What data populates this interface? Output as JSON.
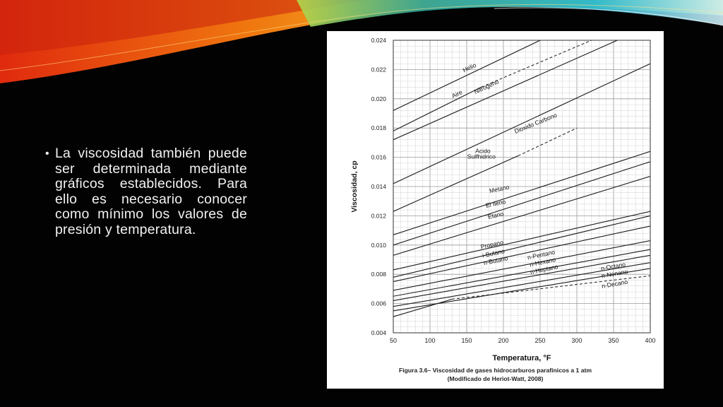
{
  "slide": {
    "bullet_text": "La viscosidad también puede ser determinada mediante gráficos establecidos. Para ello es necesario conocer como mínimo los valores de presión y temperatura.",
    "background_color": "#020202",
    "text_color": "#f2f2f2"
  },
  "figure": {
    "caption_line1": "Figura 3.6– Viscosidad de gases hidrocarburos parafínicos a 1 atm",
    "caption_line2": "(Modificado de Heriot-Watt, 2008)"
  },
  "chart_data": {
    "type": "line",
    "title": "",
    "xlabel": "Temperatura, °F",
    "ylabel": "Viscosidad, cp",
    "xlim": [
      50,
      400
    ],
    "ylim": [
      0.004,
      0.024
    ],
    "x_ticks": [
      "50",
      "100",
      "150",
      "200",
      "250",
      "300",
      "350",
      "400"
    ],
    "y_ticks": [
      "0.004",
      "0.006",
      "0.008",
      "0.010",
      "0.012",
      "0.014",
      "0.016",
      "0.018",
      "0.020",
      "0.022",
      "0.024"
    ],
    "grid": true,
    "series": [
      {
        "name": "Helio",
        "x": [
          50,
          250
        ],
        "y": [
          0.0192,
          0.024
        ],
        "dashed_x": [
          250,
          300
        ],
        "dashed_y": [
          0.024,
          0.025
        ]
      },
      {
        "name": "Aire",
        "x": [
          50,
          170
        ],
        "y": [
          0.0178,
          0.0208
        ],
        "dashed_x": [
          170,
          320
        ],
        "dashed_y": [
          0.0208,
          0.024
        ]
      },
      {
        "name": "Nitrogeno",
        "x": [
          50,
          400
        ],
        "y": [
          0.0172,
          0.025
        ]
      },
      {
        "name": "Dioxido Carbono",
        "x": [
          50,
          400
        ],
        "y": [
          0.0142,
          0.0224
        ]
      },
      {
        "name": "Acido Sulfhidrico",
        "x": [
          50,
          220
        ],
        "y": [
          0.0123,
          0.0161
        ],
        "dashed_x": [
          220,
          300
        ],
        "dashed_y": [
          0.0161,
          0.018
        ]
      },
      {
        "name": "Metano",
        "x": [
          50,
          400
        ],
        "y": [
          0.0107,
          0.0164
        ]
      },
      {
        "name": "El Ileno",
        "x": [
          50,
          400
        ],
        "y": [
          0.01,
          0.0157
        ]
      },
      {
        "name": "Etano",
        "x": [
          50,
          400
        ],
        "y": [
          0.0093,
          0.0147
        ]
      },
      {
        "name": "Propano",
        "x": [
          50,
          400
        ],
        "y": [
          0.0083,
          0.0123
        ]
      },
      {
        "name": "i-Butano",
        "x": [
          50,
          400
        ],
        "y": [
          0.0078,
          0.012
        ]
      },
      {
        "name": "n-Butano",
        "x": [
          50,
          400
        ],
        "y": [
          0.0075,
          0.0113
        ]
      },
      {
        "name": "n-Pentano",
        "x": [
          50,
          400
        ],
        "y": [
          0.0069,
          0.0103
        ]
      },
      {
        "name": "n-Hexano",
        "x": [
          50,
          400
        ],
        "y": [
          0.0065,
          0.0097
        ]
      },
      {
        "name": "n-Heptano",
        "x": [
          50,
          400
        ],
        "y": [
          0.0062,
          0.0093
        ]
      },
      {
        "name": "n-Octano",
        "x": [
          50,
          400
        ],
        "y": [
          0.0058,
          0.0088
        ]
      },
      {
        "name": "n-Nonano",
        "x": [
          50,
          400
        ],
        "y": [
          0.0055,
          0.0084
        ]
      },
      {
        "name": "n-Decano",
        "x": [
          50,
          130
        ],
        "y": [
          0.0051,
          0.0063
        ],
        "dashed_x": [
          130,
          400
        ],
        "dashed_y": [
          0.0063,
          0.0079
        ]
      }
    ],
    "annotations": [
      {
        "text": "Helio",
        "x": 155,
        "y": 0.022,
        "rotate": -25
      },
      {
        "text": "Aire",
        "x": 138,
        "y": 0.0202,
        "rotate": -25
      },
      {
        "text": "Nitrogeno",
        "x": 178,
        "y": 0.0207,
        "rotate": -25
      },
      {
        "text": "Dioxido Carbono",
        "x": 245,
        "y": 0.0182,
        "rotate": -22
      },
      {
        "text": "Acido",
        "x": 172,
        "y": 0.0163,
        "rotate": 0
      },
      {
        "text": "Sulfhidrico",
        "x": 170,
        "y": 0.0159,
        "rotate": 0
      },
      {
        "text": "Metano",
        "x": 195,
        "y": 0.0137,
        "rotate": -12
      },
      {
        "text": "El Ileno",
        "x": 190,
        "y": 0.0127,
        "rotate": -12
      },
      {
        "text": "Etano",
        "x": 190,
        "y": 0.0119,
        "rotate": -12
      },
      {
        "text": "Propano",
        "x": 185,
        "y": 0.0099,
        "rotate": -12
      },
      {
        "text": "i-Butano",
        "x": 187,
        "y": 0.0093,
        "rotate": -12
      },
      {
        "text": "n-Butano",
        "x": 190,
        "y": 0.0088,
        "rotate": -12
      },
      {
        "text": "n-Pentano",
        "x": 252,
        "y": 0.0092,
        "rotate": -12
      },
      {
        "text": "n-Hexano",
        "x": 254,
        "y": 0.0087,
        "rotate": -12
      },
      {
        "text": "n-Heptano",
        "x": 256,
        "y": 0.0082,
        "rotate": -12
      },
      {
        "text": "n-Octano",
        "x": 350,
        "y": 0.0084,
        "rotate": -10
      },
      {
        "text": "n-Nonano",
        "x": 352,
        "y": 0.0079,
        "rotate": -10
      },
      {
        "text": "n-Decano",
        "x": 352,
        "y": 0.0072,
        "rotate": -10
      }
    ]
  }
}
